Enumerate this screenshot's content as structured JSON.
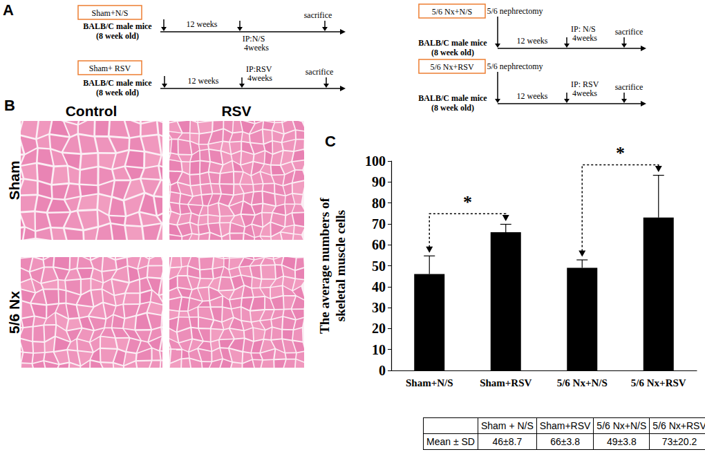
{
  "panels": {
    "a": "A",
    "b": "B",
    "c": "C"
  },
  "timelines": [
    {
      "label": "Sham+N/S",
      "subject": [
        "BALB/C male mice",
        "(8 week old)"
      ],
      "period": "12 weeks",
      "treatment": [
        "IP:N/S",
        "4weeks"
      ],
      "end": "sacrifice"
    },
    {
      "label": "Sham+ RSV",
      "subject": [
        "BALB/C male mice",
        "(8 week old)"
      ],
      "period": "12 weeks",
      "treatment": [
        "IP:RSV",
        "4weeks"
      ],
      "end": "sacrifice"
    },
    {
      "label": "5/6 Nx+N/S",
      "surgery": "5/6 nephrectomy",
      "subject": [
        "BALB/C male mice",
        "(8 week old)"
      ],
      "period": "12 weeks",
      "treatment": [
        "IP: N/S",
        "4weeks"
      ],
      "end": "sacrifice"
    },
    {
      "label": "5/6 Nx+RSV",
      "surgery": "5/6 nephrectomy",
      "subject": [
        "BALB/C male mice",
        "(8 week old)"
      ],
      "period": "12 weeks",
      "treatment": [
        "IP: RSV",
        "4weeks"
      ],
      "end": "sacrifice"
    }
  ],
  "histology": {
    "columns": [
      "Control",
      "RSV"
    ],
    "rows": [
      "Sham",
      "5/6 Nx"
    ]
  },
  "chart_data": {
    "type": "bar",
    "categories": [
      "Sham+N/S",
      "Sham+RSV",
      "5/6 Nx+N/S",
      "5/6 Nx+RSV"
    ],
    "values": [
      46,
      66,
      49,
      73
    ],
    "errors": [
      8.7,
      3.8,
      3.8,
      20.2
    ],
    "color": "#000000",
    "ylabel": "The average numbers of\nskeletal muscle cells",
    "ylim": [
      0,
      100
    ],
    "yticks": [
      0,
      10,
      20,
      30,
      40,
      50,
      60,
      70,
      80,
      90,
      100
    ],
    "grid": false,
    "significance": [
      {
        "from": "Sham+N/S",
        "to": "Sham+RSV",
        "label": "*"
      },
      {
        "from": "5/6 Nx+N/S",
        "to": "5/6 Nx+RSV",
        "label": "*"
      }
    ]
  },
  "table": {
    "header": [
      "Sham + N/S",
      "Sham+RSV",
      "5/6 Nx+N/S",
      "5/6 Nx+RSV"
    ],
    "row": {
      "label": "Mean ± SD",
      "cells": [
        "46±8.7",
        "66±3.8",
        "49±3.8",
        "73±20.2"
      ]
    }
  }
}
